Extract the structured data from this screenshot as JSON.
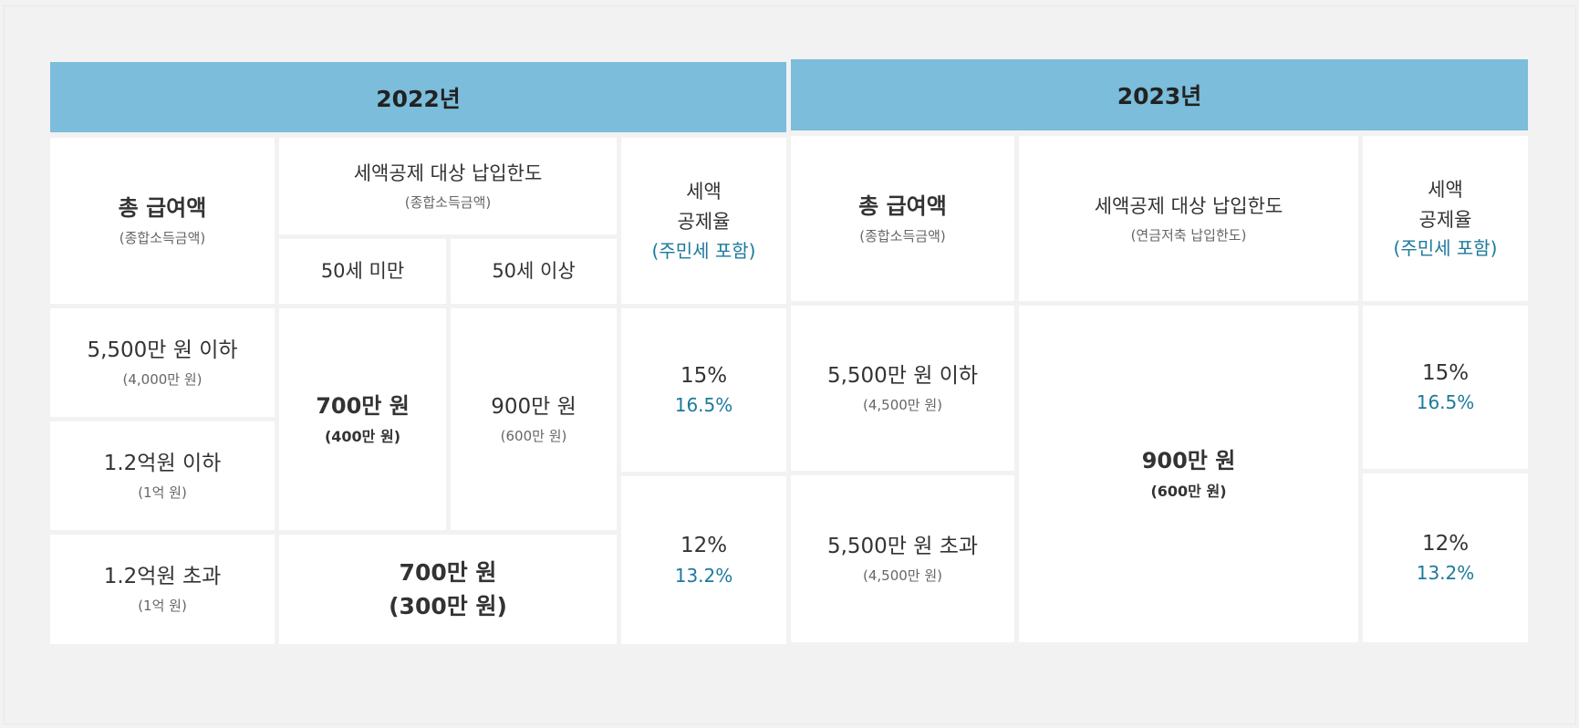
{
  "year2022": {
    "header": "2022년",
    "col_salary": {
      "title": "총 급여액",
      "sub": "(종합소득금액)"
    },
    "col_limit": {
      "title": "세액공제 대상 납입한도",
      "sub": "(종합소득금액)",
      "under50": "50세 미만",
      "over50": "50세 이상"
    },
    "col_rate": {
      "line1": "세액",
      "line2": "공제율",
      "note": "(주민세 포함)"
    },
    "rows": [
      {
        "salary": "5,500만 원 이하",
        "salary_sub": "(4,000만 원)"
      },
      {
        "salary": "1.2억원 이하",
        "salary_sub": "(1억 원)"
      },
      {
        "salary": "1.2억원 초과",
        "salary_sub": "(1억 원)"
      }
    ],
    "limit_under50": {
      "main": "700만 원",
      "sub": "(400만 원)"
    },
    "limit_over50": {
      "main": "900만 원",
      "sub": "(600만 원)"
    },
    "limit_high": {
      "main": "700만 원",
      "sub": "(300만 원)"
    },
    "rate_low": {
      "main": "15%",
      "sub": "16.5%"
    },
    "rate_high": {
      "main": "12%",
      "sub": "13.2%"
    }
  },
  "year2023": {
    "header": "2023년",
    "col_salary": {
      "title": "총 급여액",
      "sub": "(종합소득금액)"
    },
    "col_limit": {
      "title": "세액공제 대상 납입한도",
      "sub": "(연금저축 납입한도)"
    },
    "col_rate": {
      "line1": "세액",
      "line2": "공제율",
      "note": "(주민세 포함)"
    },
    "rows": [
      {
        "salary": "5,500만 원 이하",
        "salary_sub": "(4,500만 원)"
      },
      {
        "salary": "5,500만 원 초과",
        "salary_sub": "(4,500만 원)"
      }
    ],
    "limit": {
      "main": "900만 원",
      "sub": "(600만 원)"
    },
    "rate_low": {
      "main": "15%",
      "sub": "16.5%"
    },
    "rate_high": {
      "main": "12%",
      "sub": "13.2%"
    }
  },
  "colors": {
    "header_bg": "#7bbddb",
    "accent": "#1c7a9c",
    "background": "#f2f2f2"
  }
}
